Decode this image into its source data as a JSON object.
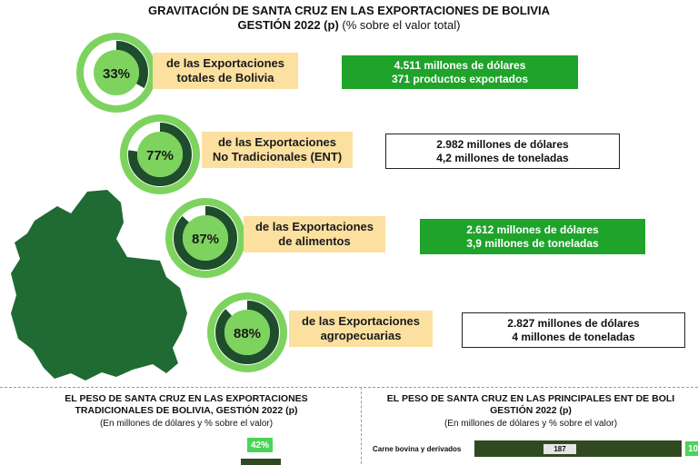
{
  "header": {
    "title": "GRAVITACIÓN DE SANTA CRUZ EN LAS EXPORTACIONES DE BOLIVIA",
    "subtitle_bold": "GESTIÓN 2022 (p)",
    "subtitle_note": "(% sobre el valor total)"
  },
  "colors": {
    "light_green": "#7dd35e",
    "dark_green": "#1e4d2b",
    "label_bg": "#fbe0a0",
    "value_green": "#1fa32b",
    "map_green": "#1f6b33"
  },
  "indicators": [
    {
      "percent": 33,
      "percent_label": "33%",
      "line1": "de las Exportaciones",
      "line2": "totales de Bolivia",
      "value_line1": "4.511 millones de dólares",
      "value_line2": "371 productos exportados",
      "value_style": "green"
    },
    {
      "percent": 77,
      "percent_label": "77%",
      "line1": "de las Exportaciones",
      "line2": "No Tradicionales (ENT)",
      "value_line1": "2.982 millones de dólares",
      "value_line2": "4,2 millones de toneladas",
      "value_style": "white"
    },
    {
      "percent": 87,
      "percent_label": "87%",
      "line1": "de las Exportaciones",
      "line2": "de alimentos",
      "value_line1": "2.612 millones de dólares",
      "value_line2": "3,9 millones de toneladas",
      "value_style": "green"
    },
    {
      "percent": 88,
      "percent_label": "88%",
      "line1": "de las Exportaciones",
      "line2": "agropecuarias",
      "value_line1": "2.827 millones de dólares",
      "value_line2": "4 millones de toneladas",
      "value_style": "white"
    }
  ],
  "left_section": {
    "title_line1": "EL PESO DE SANTA CRUZ EN LAS EXPORTACIONES",
    "title_line2": "TRADICIONALES DE BOLIVIA, GESTIÓN 2022 (p)",
    "subtitle": "(En millones de dólares y % sobre el valor)",
    "badge": "42%"
  },
  "right_section": {
    "title_line1": "EL PESO DE SANTA CRUZ EN LAS PRINCIPALES  ENT DE BOLI",
    "title_line2": "GESTIÓN 2022 (p)",
    "subtitle": "(En millones de dólares y % sobre el valor)",
    "row_label": "Carne bovina y derivados",
    "row_value": "187",
    "row_badge": "10"
  }
}
